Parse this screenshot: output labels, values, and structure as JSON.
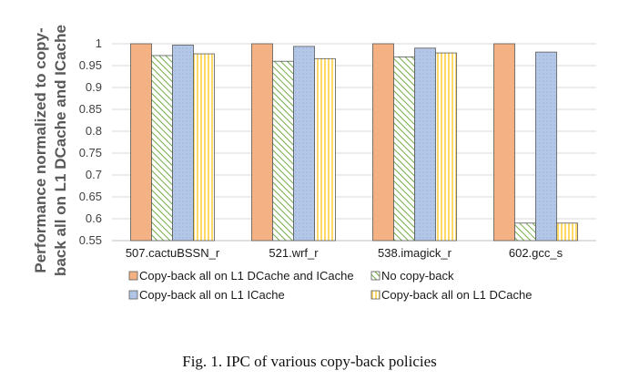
{
  "chart_data": {
    "type": "bar",
    "ylabel_lines": [
      "Performance normalized to copy-",
      "back all on L1 DCache and ICache"
    ],
    "categories": [
      "507.cactuBSSN_r",
      "521.wrf_r",
      "538.imagick_r",
      "602.gcc_s"
    ],
    "series": [
      {
        "name": "Copy-back all on L1 DCache and ICache",
        "values": [
          1.0,
          1.0,
          1.0,
          1.0
        ],
        "color": "#f4b183",
        "pattern": "solid"
      },
      {
        "name": "No copy-back",
        "values": [
          0.973,
          0.96,
          0.97,
          0.59
        ],
        "color": "#70ad47",
        "pattern": "diagonal"
      },
      {
        "name": "Copy-back all on L1 ICache",
        "values": [
          0.997,
          0.994,
          0.99,
          0.981
        ],
        "color": "#b4c7e7",
        "pattern": "dots"
      },
      {
        "name": "Copy-back all on L1 DCache",
        "values": [
          0.977,
          0.966,
          0.979,
          0.59
        ],
        "color": "#ffd966",
        "pattern": "vertical"
      }
    ],
    "yticks": [
      "0.55",
      "0.6",
      "0.65",
      "0.7",
      "0.75",
      "0.8",
      "0.85",
      "0.9",
      "0.95",
      "1"
    ],
    "ylim": [
      0.55,
      1.0
    ],
    "grid": true,
    "legend_position": "bottom"
  },
  "caption": "Fig. 1.   IPC of various copy-back policies"
}
